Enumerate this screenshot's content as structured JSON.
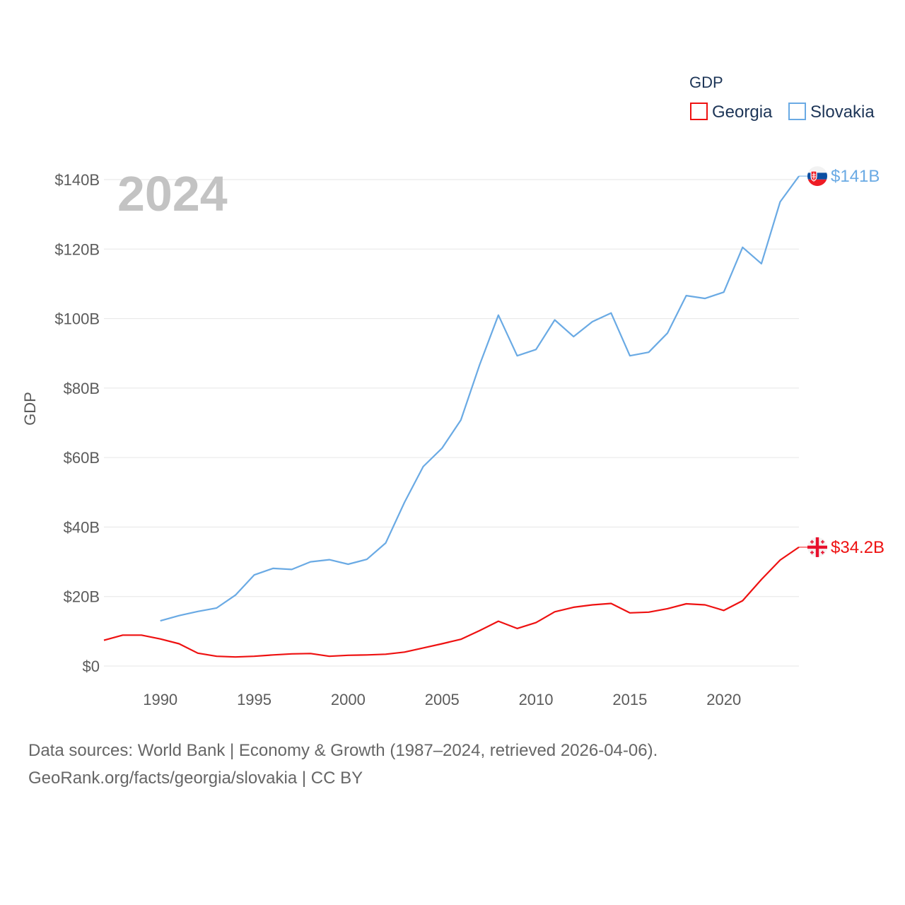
{
  "chart_data": {
    "type": "line",
    "title": "",
    "year_watermark": "2024",
    "xlabel": "",
    "ylabel": "GDP",
    "legend_title": "GDP",
    "legend_position": "top-right",
    "xlim": [
      1987,
      2024
    ],
    "ylim": [
      0,
      140
    ],
    "x_ticks": [
      1990,
      1995,
      2000,
      2005,
      2010,
      2015,
      2020
    ],
    "x_tick_labels": [
      "1990",
      "1995",
      "2000",
      "2005",
      "2010",
      "2015",
      "2020"
    ],
    "y_ticks": [
      0,
      20,
      40,
      60,
      80,
      100,
      120,
      140
    ],
    "y_tick_labels": [
      "$0",
      "$20B",
      "$40B",
      "$60B",
      "$80B",
      "$100B",
      "$120B",
      "$140B"
    ],
    "units": "billion USD",
    "series": [
      {
        "name": "Georgia",
        "color": "#ee1111",
        "end_label": "$34.2B",
        "flag_icon": "georgia-flag-icon",
        "x": [
          1987,
          1988,
          1989,
          1990,
          1991,
          1992,
          1993,
          1994,
          1995,
          1996,
          1997,
          1998,
          1999,
          2000,
          2001,
          2002,
          2003,
          2004,
          2005,
          2006,
          2007,
          2008,
          2009,
          2010,
          2011,
          2012,
          2013,
          2014,
          2015,
          2016,
          2017,
          2018,
          2019,
          2020,
          2021,
          2022,
          2023,
          2024
        ],
        "values": [
          7.4,
          8.9,
          8.9,
          7.8,
          6.4,
          3.7,
          2.8,
          2.6,
          2.8,
          3.2,
          3.5,
          3.6,
          2.8,
          3.1,
          3.2,
          3.4,
          4.0,
          5.2,
          6.4,
          7.7,
          10.2,
          12.9,
          10.8,
          12.5,
          15.6,
          16.9,
          17.6,
          18.0,
          15.3,
          15.5,
          16.5,
          17.9,
          17.6,
          16.0,
          18.8,
          24.9,
          30.5,
          34.2
        ]
      },
      {
        "name": "Slovakia",
        "color": "#6aaae4",
        "end_label": "$141B",
        "flag_icon": "slovakia-flag-icon",
        "x": [
          1990,
          1991,
          1992,
          1993,
          1994,
          1995,
          1996,
          1997,
          1998,
          1999,
          2000,
          2001,
          2002,
          2003,
          2004,
          2005,
          2006,
          2007,
          2008,
          2009,
          2010,
          2011,
          2012,
          2013,
          2014,
          2015,
          2016,
          2017,
          2018,
          2019,
          2020,
          2021,
          2022,
          2023,
          2024
        ],
        "values": [
          13.0,
          14.5,
          15.7,
          16.7,
          20.4,
          26.2,
          28.1,
          27.8,
          30.0,
          30.6,
          29.3,
          30.7,
          35.4,
          47.1,
          57.4,
          62.7,
          70.8,
          86.7,
          101.0,
          89.3,
          91.1,
          99.6,
          94.8,
          99.1,
          101.6,
          89.3,
          90.3,
          95.8,
          106.6,
          105.8,
          107.6,
          120.5,
          115.8,
          133.6,
          141.0
        ]
      }
    ]
  },
  "footer": {
    "line1": "Data sources: World Bank | Economy & Growth (1987–2024, retrieved 2026-04-06).",
    "line2": "GeoRank.org/facts/georgia/slovakia | CC BY"
  }
}
